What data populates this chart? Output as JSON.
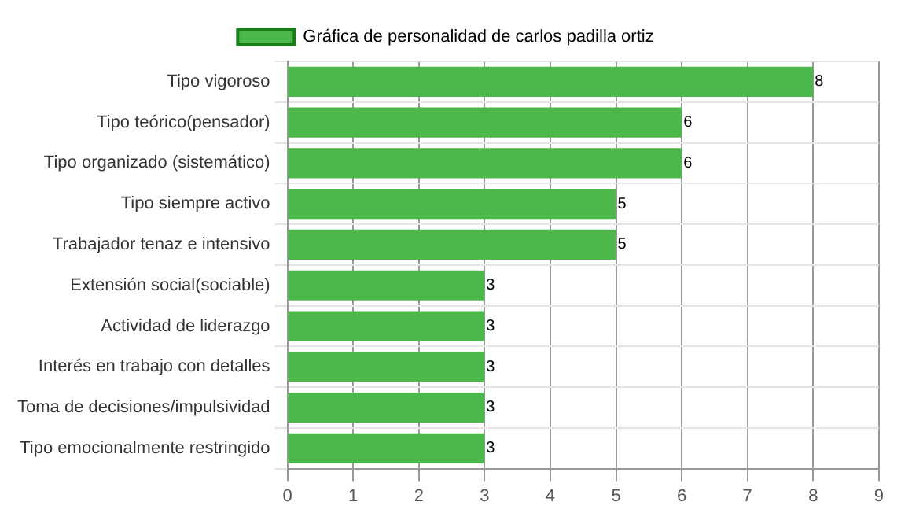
{
  "chart_data": {
    "type": "bar",
    "orientation": "horizontal",
    "categories": [
      "Tipo vigoroso",
      "Tipo teórico(pensador)",
      "Tipo organizado (sistemático)",
      "Tipo siempre activo",
      "Trabajador tenaz e intensivo",
      "Extensión social(sociable)",
      "Actividad de liderazgo",
      "Interés en trabajo con detalles",
      "Toma de decisiones/impulsividad",
      "Tipo emocionalmente restringido"
    ],
    "series": [
      {
        "name": "Gráfica de personalidad de carlos padilla ortiz",
        "color": "#4cb84c",
        "values": [
          8,
          6,
          6,
          5,
          5,
          3,
          3,
          3,
          3,
          3
        ]
      }
    ],
    "xlim": [
      0,
      9
    ],
    "xticks": [
      0,
      1,
      2,
      3,
      4,
      5,
      6,
      7,
      8,
      9
    ],
    "grid": true,
    "legend": "top",
    "data_labels": true
  }
}
